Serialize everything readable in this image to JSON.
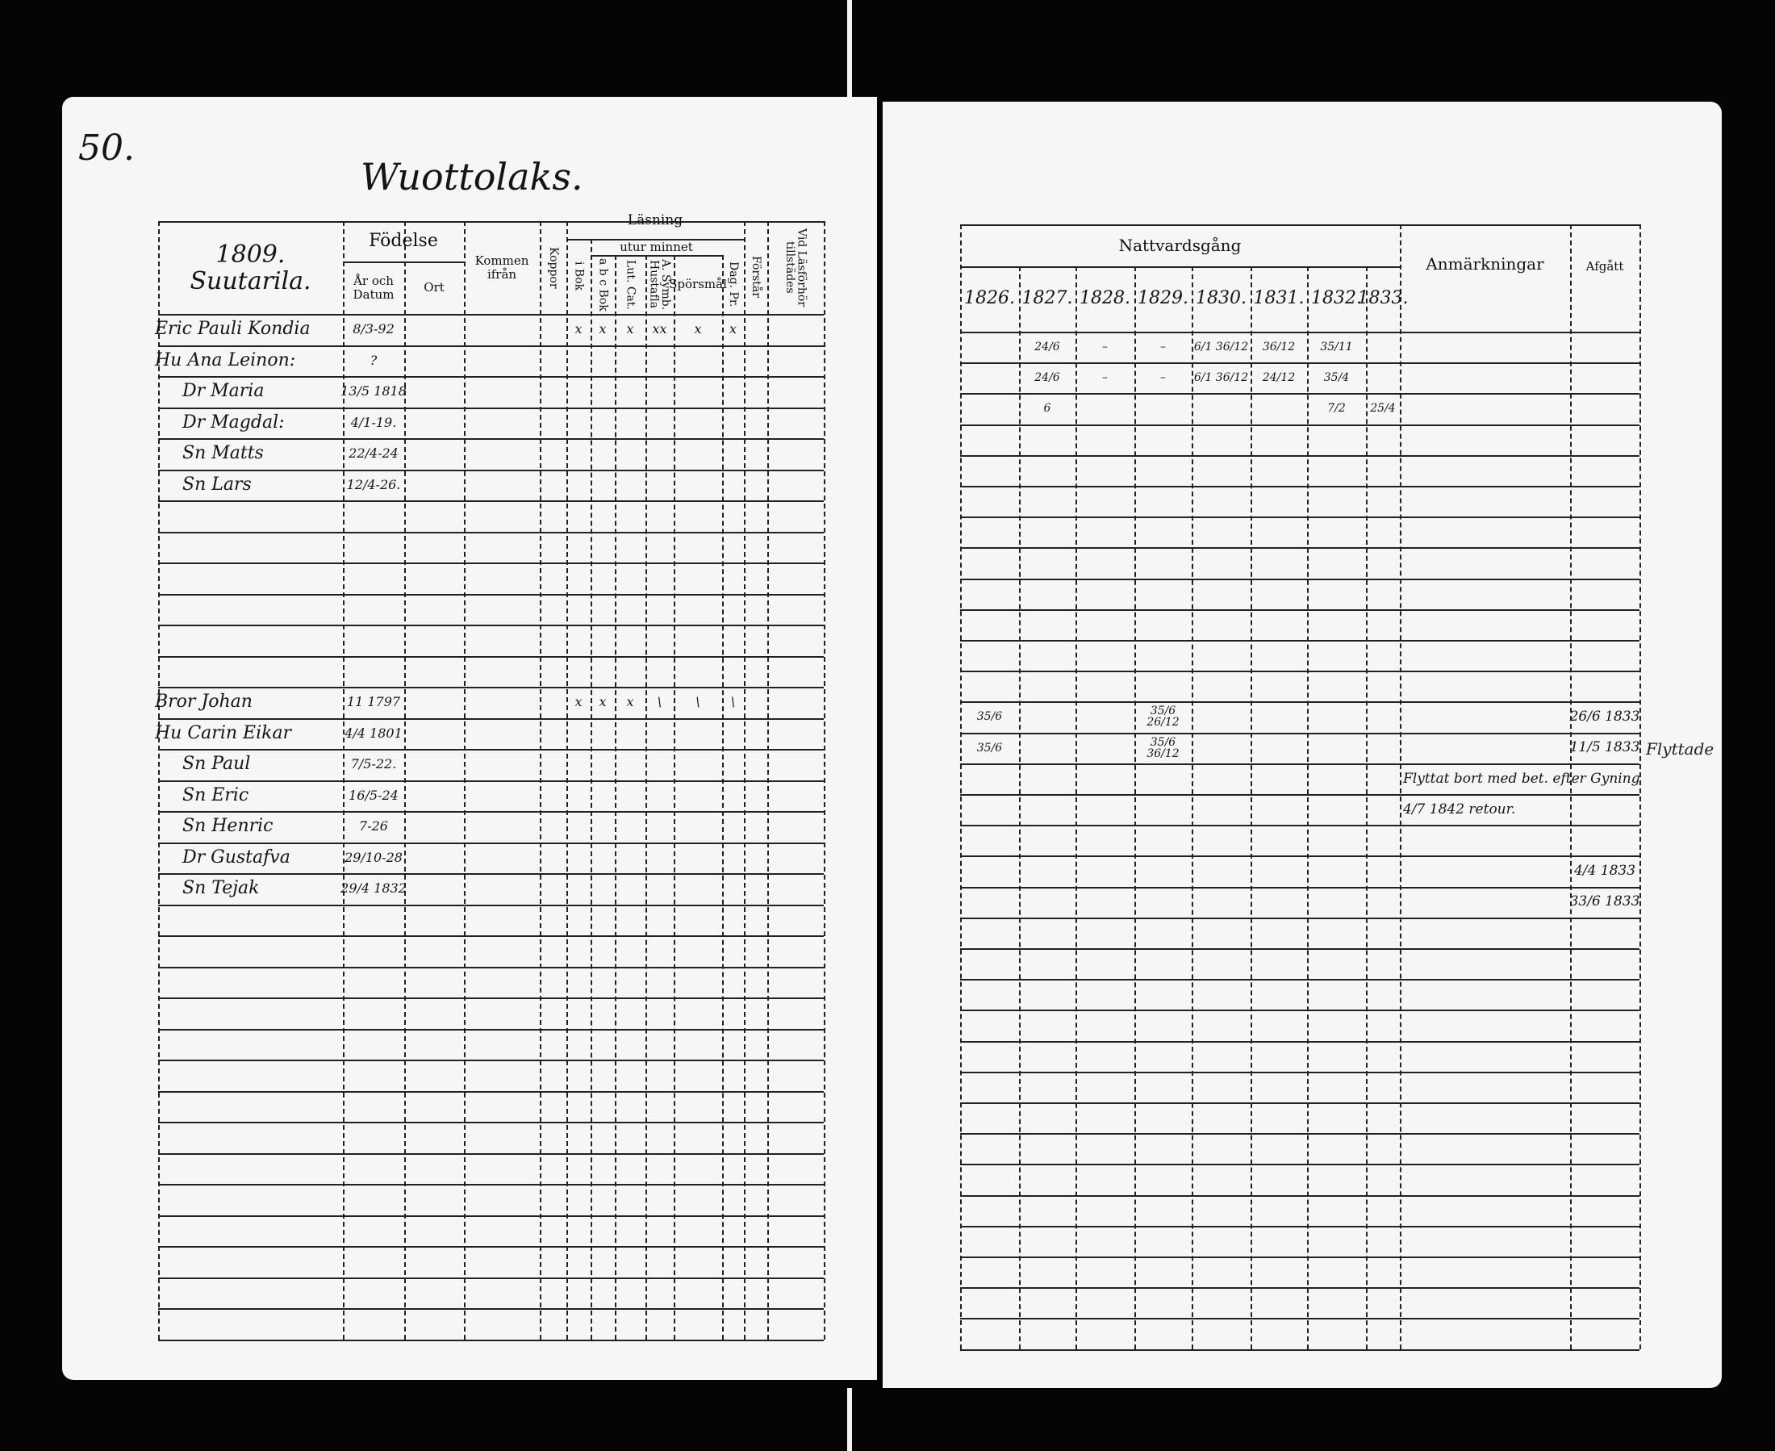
{
  "left_page": {
    "page_number": "50.",
    "village": "Wuottolaks.",
    "table": {
      "corner_text": [
        "1809.",
        "Suutarila."
      ],
      "headers": {
        "fodelse": "Födelse",
        "ar_och_datum": "År och Datum",
        "ort": "Ort",
        "kommen_ifran": "Kommen ifrån",
        "koppor": "Koppor",
        "lasning": "Läsning",
        "utur_minnet": "utur minnet",
        "i_bok": "i Bok",
        "abc_bok": "a b c Bok",
        "lut_cat": "Lut. Cat.",
        "a_symb": "A. Symb. Hustafla",
        "sporsmal": "Spörsmål",
        "dag_pr": "Dag. Pr.",
        "forstar": "Förstår",
        "vid_lasforhor": "Vid Läsförhör tillstädes"
      },
      "rows": [
        {
          "row": 0,
          "name": "Eric Pauli Kondia",
          "date": "8/3-92",
          "reading": [
            "x",
            "x",
            "x",
            "xx",
            "x",
            "x"
          ]
        },
        {
          "row": 1,
          "name": "Hu Ana Leinon:",
          "date": "?"
        },
        {
          "row": 2,
          "name": "Dr Maria",
          "date": "13/5 1818"
        },
        {
          "row": 3,
          "name": "Dr Magdal:",
          "date": "4/1-19."
        },
        {
          "row": 4,
          "name": "Sn Matts",
          "date": "22/4-24"
        },
        {
          "row": 5,
          "name": "Sn Lars",
          "date": "12/4-26."
        },
        {
          "row": 12,
          "name": "Bror Johan",
          "date": "11 1797",
          "reading": [
            "x",
            "x",
            "x",
            "\\",
            "\\",
            "\\"
          ]
        },
        {
          "row": 13,
          "name": "Hu Carin Eikar",
          "date": "4/4 1801"
        },
        {
          "row": 14,
          "name": "Sn Paul",
          "date": "7/5-22."
        },
        {
          "row": 15,
          "name": "Sn Eric",
          "date": "16/5-24"
        },
        {
          "row": 16,
          "name": "Sn Henric",
          "date": "7-26"
        },
        {
          "row": 17,
          "name": "Dr Gustafva",
          "date": "29/10-28"
        },
        {
          "row": 18,
          "name": "Sn Tejak",
          "date": "29/4 1832"
        }
      ],
      "row_count": 33
    }
  },
  "right_page": {
    "table": {
      "headers": {
        "nattvardsgang": "Nattvardsgång",
        "years": [
          "1826.",
          "1827.",
          "1828.",
          "1829.",
          "1830.",
          "1831.",
          "1832.",
          "1833."
        ],
        "anmarkningar": "Anmärkningar",
        "afgatt": "Afgått"
      },
      "rows": [
        {
          "row": 0,
          "years": [
            "",
            "24/6",
            "–",
            "–",
            "6/1 36/12",
            "36/12",
            "35/11",
            ""
          ]
        },
        {
          "row": 1,
          "years": [
            "",
            "24/6",
            "–",
            "–",
            "6/1 36/12",
            "24/12",
            "35/4",
            ""
          ]
        },
        {
          "row": 2,
          "years": [
            "",
            "6",
            "",
            "",
            "",
            "",
            "7/2",
            "25/4"
          ]
        },
        {
          "row": 12,
          "years": [
            "35/6",
            "",
            "",
            "35/6 26/12",
            "",
            "",
            "",
            ""
          ],
          "afgatt": "26/6 1833"
        },
        {
          "row": 13,
          "years": [
            "35/6",
            "",
            "",
            "35/6 36/12",
            "",
            "",
            "",
            ""
          ],
          "afgatt": "11/5 1833"
        },
        {
          "row": 14,
          "anmarkning": "Flyttat bort med bet. efter Gyning"
        },
        {
          "row": 15,
          "anmarkning": "4/7 1842 retour."
        },
        {
          "row": 17,
          "afgatt": "4/4 1833"
        },
        {
          "row": 18,
          "afgatt": "33/6 1833"
        }
      ],
      "margin_note": "Flyttade",
      "row_count": 33
    }
  }
}
